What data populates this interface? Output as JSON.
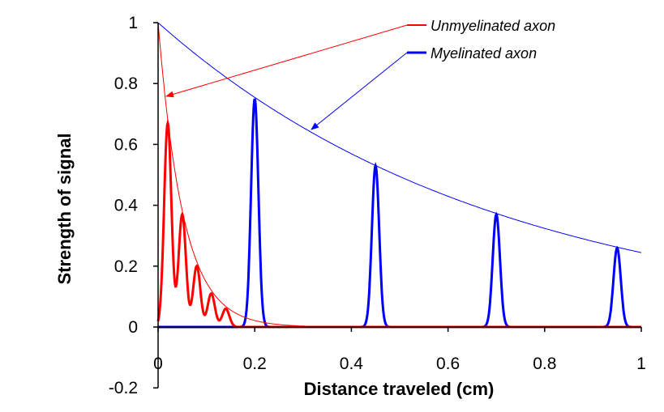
{
  "chart_data": {
    "type": "line",
    "title": "",
    "xlabel": "Distance traveled (cm)",
    "ylabel": "Strength of signal",
    "xlim": [
      0,
      1
    ],
    "ylim": [
      -0.2,
      1
    ],
    "x_ticks": [
      "0",
      "0.2",
      "0.4",
      "0.6",
      "0.8",
      "1"
    ],
    "y_ticks": [
      "-0.2",
      "0",
      "0.2",
      "0.4",
      "0.6",
      "0.8",
      "1"
    ],
    "grid": false,
    "legend_placement": "top-right, with arrows pointing to envelope curves",
    "series": [
      {
        "name": "Unmyelinated axon",
        "color": "#ff0000",
        "envelope": {
          "type": "exponential decay",
          "start": 1,
          "length_constant": 0.052
        },
        "peaks": [
          {
            "x": 0.02,
            "y": 0.67
          },
          {
            "x": 0.05,
            "y": 0.37
          },
          {
            "x": 0.08,
            "y": 0.2
          },
          {
            "x": 0.11,
            "y": 0.11
          },
          {
            "x": 0.14,
            "y": 0.06
          }
        ]
      },
      {
        "name": "Myelinated axon",
        "color": "#0000ff",
        "envelope": {
          "type": "exponential decay",
          "start": 1,
          "length_constant": 0.71
        },
        "peaks": [
          {
            "x": 0.2,
            "y": 0.75
          },
          {
            "x": 0.45,
            "y": 0.53
          },
          {
            "x": 0.7,
            "y": 0.37
          },
          {
            "x": 0.95,
            "y": 0.26
          }
        ]
      }
    ]
  }
}
